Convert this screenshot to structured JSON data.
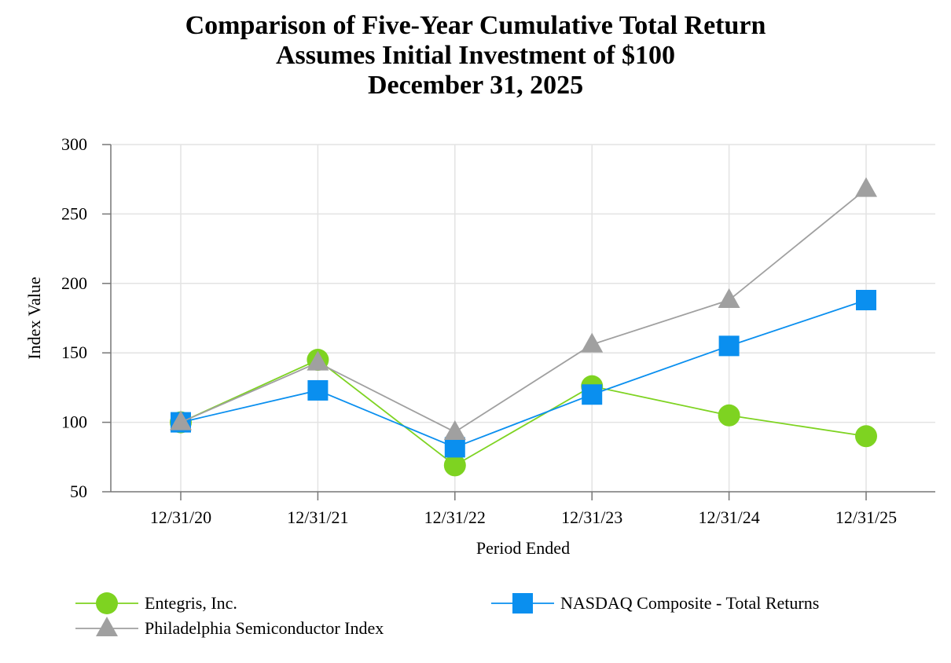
{
  "chart_data": {
    "type": "line",
    "title": [
      "Comparison of Five-Year Cumulative Total Return",
      "Assumes Initial Investment of $100",
      "December 31, 2025"
    ],
    "xlabel": "Period Ended",
    "ylabel": "Index Value",
    "categories": [
      "12/31/20",
      "12/31/21",
      "12/31/22",
      "12/31/23",
      "12/31/24",
      "12/31/25"
    ],
    "ylim": [
      50,
      300
    ],
    "yticks": [
      50,
      100,
      150,
      200,
      250,
      300
    ],
    "grid": true,
    "legend_position": "bottom",
    "series": [
      {
        "name": "Entegris, Inc.",
        "marker": "circle",
        "color": "#7ed321",
        "values": [
          100,
          145,
          69,
          126,
          105,
          90
        ]
      },
      {
        "name": "NASDAQ Composite - Total Returns",
        "marker": "square",
        "color": "#0a8fef",
        "values": [
          100,
          123,
          82,
          120,
          155,
          188
        ]
      },
      {
        "name": "Philadelphia Semiconductor Index",
        "marker": "triangle",
        "color": "#a0a0a0",
        "values": [
          100,
          143,
          93,
          156,
          188,
          268
        ]
      }
    ]
  }
}
